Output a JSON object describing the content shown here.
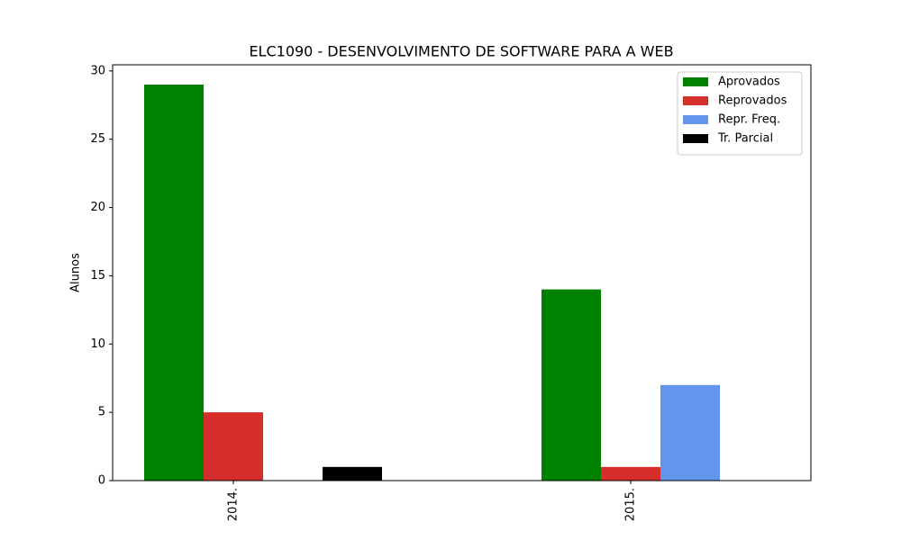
{
  "chart_data": {
    "type": "bar",
    "title": "ELC1090 - DESENVOLVIMENTO DE SOFTWARE PARA A WEB",
    "y_label": "Alunos",
    "categories": [
      "2014.",
      "2015."
    ],
    "series": [
      {
        "name": "Aprovados",
        "color": "#008000",
        "values": [
          29,
          14
        ]
      },
      {
        "name": "Reprovados",
        "color": "#d62d2d",
        "values": [
          5,
          1
        ]
      },
      {
        "name": "Repr. Freq.",
        "color": "#6495ed",
        "values": [
          0,
          7
        ]
      },
      {
        "name": "Tr. Parcial",
        "color": "#000000",
        "values": [
          1,
          0
        ]
      }
    ],
    "ylim": [
      0,
      30.45
    ],
    "yticks": [
      0,
      5,
      10,
      15,
      20,
      25,
      30
    ],
    "grid": false,
    "legend": "upper right"
  }
}
